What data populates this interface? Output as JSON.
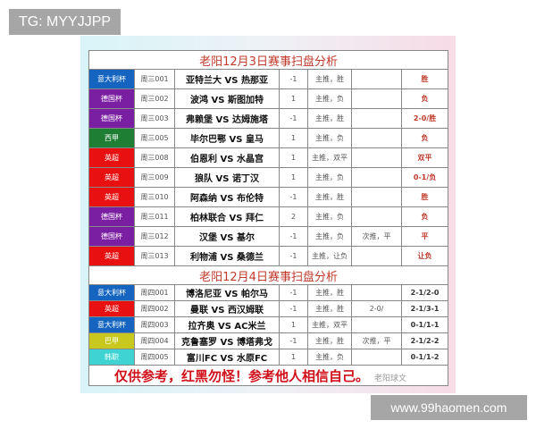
{
  "overlay_tag": "TG: MYYJJPP",
  "site_watermark": "www.99haomen.com",
  "section1": {
    "title": "老阳12月3日赛事扫盘分析",
    "rows": [
      {
        "league": "意大利杯",
        "color": "#1565c0",
        "code": "周三001",
        "match": "亚特兰大 VS 热那亚",
        "handicap": "-1",
        "pick": "主推，胜",
        "extra": "",
        "result": "胜"
      },
      {
        "league": "德国杯",
        "color": "#7b1fa2",
        "code": "周三002",
        "match": "波鸿 VS 斯图加特",
        "handicap": "1",
        "pick": "主推，负",
        "extra": "",
        "result": "负"
      },
      {
        "league": "德国杯",
        "color": "#7b1fa2",
        "code": "周三003",
        "match": "弗赖堡 VS 达姆施塔",
        "handicap": "-1",
        "pick": "主推，胜",
        "extra": "",
        "result": "2-0/胜"
      },
      {
        "league": "西甲",
        "color": "#1e7e34",
        "code": "周三005",
        "match": "毕尔巴鄂 VS 皇马",
        "handicap": "1",
        "pick": "主推，负",
        "extra": "",
        "result": "负"
      },
      {
        "league": "英超",
        "color": "#e81010",
        "code": "周三008",
        "match": "伯恩利 VS 水晶宫",
        "handicap": "1",
        "pick": "主推，双平",
        "extra": "",
        "result": "双平"
      },
      {
        "league": "英超",
        "color": "#e81010",
        "code": "周三009",
        "match": "狼队 VS 诺丁汉",
        "handicap": "1",
        "pick": "主推，负",
        "extra": "",
        "result": "0-1/负"
      },
      {
        "league": "英超",
        "color": "#e81010",
        "code": "周三010",
        "match": "阿森纳 VS 布伦特",
        "handicap": "-1",
        "pick": "主推，胜",
        "extra": "",
        "result": "胜"
      },
      {
        "league": "德国杯",
        "color": "#7b1fa2",
        "code": "周三011",
        "match": "柏林联合 VS 拜仁",
        "handicap": "2",
        "pick": "主推，负",
        "extra": "",
        "result": "负"
      },
      {
        "league": "德国杯",
        "color": "#7b1fa2",
        "code": "周三012",
        "match": "汉堡 VS 基尔",
        "handicap": "-1",
        "pick": "主推，负",
        "extra": "次推，平",
        "result": "平"
      },
      {
        "league": "英超",
        "color": "#e81010",
        "code": "周三013",
        "match": "利物浦 VS 桑德兰",
        "handicap": "-1",
        "pick": "主推，让负",
        "extra": "",
        "result": "让负"
      }
    ]
  },
  "section2": {
    "title": "老阳12月4日赛事扫盘分析",
    "rows": [
      {
        "league": "意大利杯",
        "color": "#1565c0",
        "code": "周四001",
        "match": "博洛尼亚 VS 帕尔马",
        "handicap": "-1",
        "pick": "主推，胜",
        "extra": "",
        "result": "2-1/2-0"
      },
      {
        "league": "英超",
        "color": "#e81010",
        "code": "周四002",
        "match": "曼联 VS 西汉姆联",
        "handicap": "-1",
        "pick": "主推，胜",
        "extra": "2-0/",
        "result": "2-1/3-1"
      },
      {
        "league": "意大利杯",
        "color": "#1565c0",
        "code": "周四003",
        "match": "拉齐奥 VS AC米兰",
        "handicap": "1",
        "pick": "主推，双平",
        "extra": "",
        "result": "0-1/1-1"
      },
      {
        "league": "巴甲",
        "color": "#c8c81e",
        "code": "周四004",
        "match": "克鲁塞罗 VS 博塔弗戈",
        "handicap": "-1",
        "pick": "主推，胜",
        "extra": "次推，平",
        "result": "2-1/2-2"
      },
      {
        "league": "韩职",
        "color": "#3fd3d3",
        "code": "周四005",
        "match": "富川FC VS 水原FC",
        "handicap": "1",
        "pick": "主推，负",
        "extra": "",
        "result": "0-1/1-2"
      }
    ]
  },
  "footer": {
    "disclaimer": "仅供参考，红黑勿怪！参考他人相信自己。",
    "watermark": "老阳球文"
  }
}
